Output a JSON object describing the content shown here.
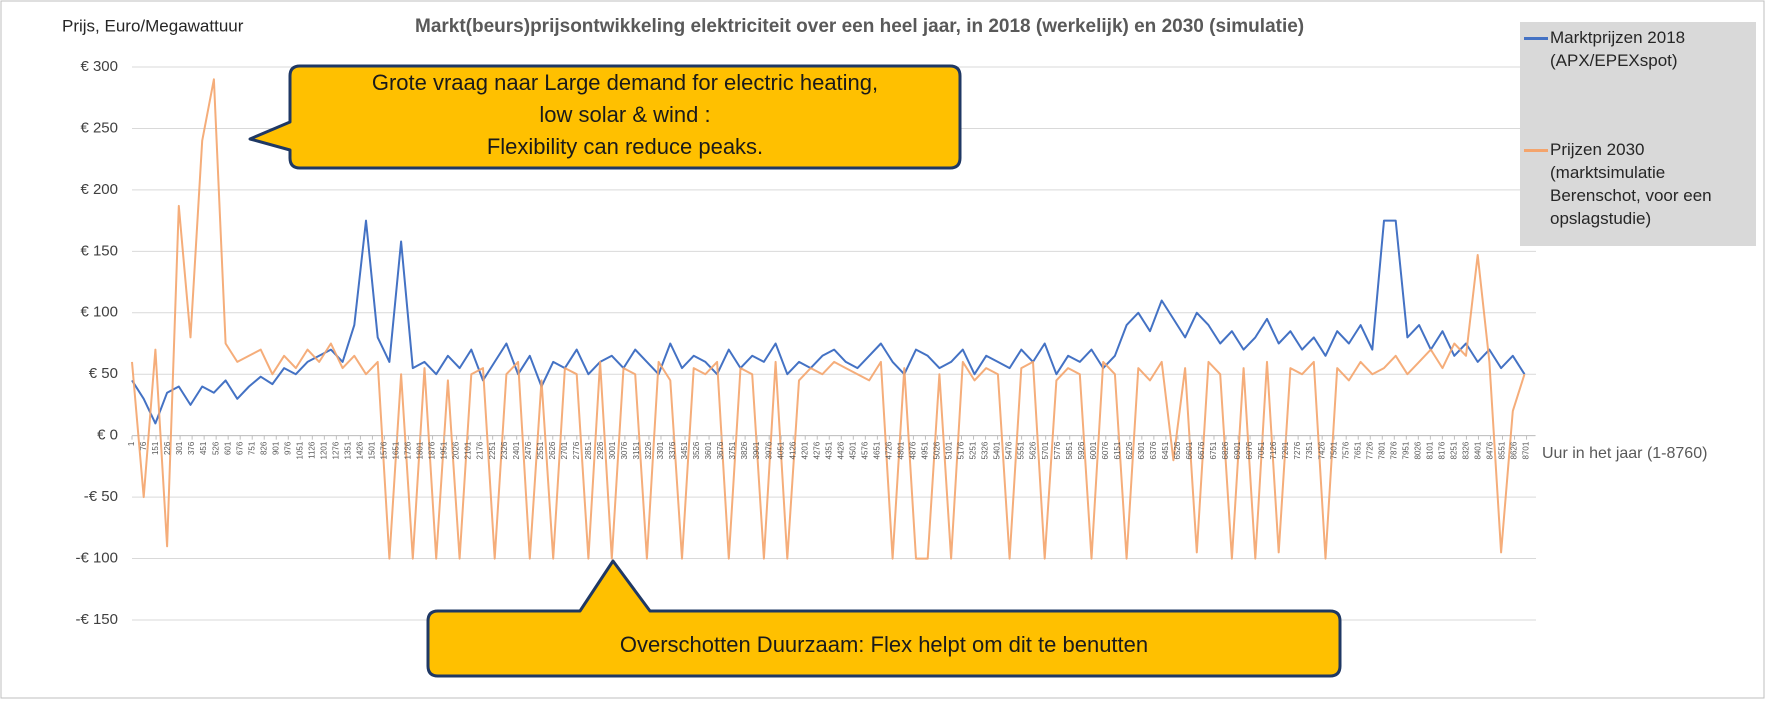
{
  "chart_data": {
    "type": "line",
    "title": "Markt(beurs)prijsontwikkeling elektriciteit over een heel jaar, in 2018 (werkelijk) en 2030 (simulatie)",
    "y_label": "Prijs, Euro/Megawattuur",
    "x_label": "Uur in het jaar (1-8760)",
    "xlim": [
      1,
      8760
    ],
    "ylim": [
      -150,
      300
    ],
    "yticks": [
      {
        "value": -150,
        "label": "-€ 150"
      },
      {
        "value": -100,
        "label": "-€ 100"
      },
      {
        "value": -50,
        "label": "-€ 50"
      },
      {
        "value": 0,
        "label": "€ 0"
      },
      {
        "value": 50,
        "label": "€ 50"
      },
      {
        "value": 100,
        "label": "€ 100"
      },
      {
        "value": 150,
        "label": "€ 150"
      },
      {
        "value": 200,
        "label": "€ 200"
      },
      {
        "value": 250,
        "label": "€ 250"
      },
      {
        "value": 300,
        "label": "€ 300"
      }
    ],
    "xticks": [
      1,
      76,
      151,
      226,
      301,
      376,
      451,
      526,
      601,
      676,
      751,
      826,
      901,
      976,
      1051,
      1126,
      1201,
      1276,
      1351,
      1426,
      1501,
      1576,
      1651,
      1726,
      1801,
      1876,
      1951,
      2026,
      2101,
      2176,
      2251,
      2326,
      2401,
      2476,
      2551,
      2626,
      2701,
      2776,
      2851,
      2926,
      3001,
      3076,
      3151,
      3226,
      3301,
      3376,
      3451,
      3526,
      3601,
      3676,
      3751,
      3826,
      3901,
      3976,
      4051,
      4126,
      4201,
      4276,
      4351,
      4426,
      4501,
      4576,
      4651,
      4726,
      4801,
      4876,
      4951,
      5026,
      5101,
      5176,
      5251,
      5326,
      5401,
      5476,
      5551,
      5626,
      5701,
      5776,
      5851,
      5926,
      6001,
      6076,
      6151,
      6226,
      6301,
      6376,
      6451,
      6526,
      6601,
      6676,
      6751,
      6826,
      6901,
      6976,
      7051,
      7126,
      7201,
      7276,
      7351,
      7426,
      7501,
      7576,
      7651,
      7726,
      7801,
      7876,
      7951,
      8026,
      8101,
      8176,
      8251,
      8326,
      8401,
      8476,
      8551,
      8626,
      8701
    ],
    "grid": true,
    "x": [
      1,
      74,
      147,
      220,
      293,
      366,
      439,
      512,
      585,
      658,
      731,
      804,
      877,
      950,
      1023,
      1096,
      1169,
      1242,
      1315,
      1388,
      1461,
      1534,
      1607,
      1680,
      1753,
      1826,
      1899,
      1972,
      2045,
      2118,
      2191,
      2264,
      2337,
      2410,
      2483,
      2556,
      2629,
      2702,
      2775,
      2848,
      2921,
      2994,
      3067,
      3140,
      3213,
      3286,
      3359,
      3432,
      3505,
      3578,
      3651,
      3724,
      3797,
      3870,
      3943,
      4016,
      4089,
      4162,
      4235,
      4308,
      4381,
      4454,
      4527,
      4600,
      4673,
      4746,
      4819,
      4892,
      4965,
      5038,
      5111,
      5184,
      5257,
      5330,
      5403,
      5476,
      5549,
      5622,
      5695,
      5768,
      5841,
      5914,
      5987,
      6060,
      6133,
      6206,
      6279,
      6352,
      6425,
      6498,
      6571,
      6644,
      6717,
      6790,
      6863,
      6936,
      7009,
      7082,
      7155,
      7228,
      7301,
      7374,
      7447,
      7520,
      7593,
      7666,
      7739,
      7812,
      7885,
      7958,
      8031,
      8104,
      8177,
      8250,
      8323,
      8396,
      8469,
      8542,
      8615,
      8688
    ],
    "series": [
      {
        "name": "Marktprijzen 2018 (APX/EPEXspot)",
        "color": "#4472c4",
        "values": [
          45,
          30,
          10,
          35,
          40,
          25,
          40,
          35,
          45,
          30,
          40,
          48,
          42,
          55,
          50,
          60,
          65,
          70,
          60,
          90,
          175,
          80,
          60,
          158,
          55,
          60,
          50,
          65,
          55,
          70,
          45,
          60,
          75,
          50,
          65,
          40,
          60,
          55,
          70,
          50,
          60,
          65,
          55,
          70,
          60,
          50,
          75,
          55,
          65,
          60,
          50,
          70,
          55,
          65,
          60,
          75,
          50,
          60,
          55,
          65,
          70,
          60,
          55,
          65,
          75,
          60,
          50,
          70,
          65,
          55,
          60,
          70,
          50,
          65,
          60,
          55,
          70,
          60,
          75,
          50,
          65,
          60,
          70,
          55,
          65,
          90,
          100,
          85,
          110,
          95,
          80,
          100,
          90,
          75,
          85,
          70,
          80,
          95,
          75,
          85,
          70,
          80,
          65,
          85,
          75,
          90,
          70,
          175,
          175,
          80,
          90,
          70,
          85,
          65,
          75,
          60,
          70,
          55,
          65,
          50
        ]
      },
      {
        "name": "Prijzen 2030 (marktsimulatie Berenschot, voor een opslagstudie)",
        "color": "#f4a46c",
        "values": [
          60,
          -50,
          70,
          -90,
          187,
          80,
          240,
          290,
          75,
          60,
          65,
          70,
          50,
          65,
          55,
          70,
          60,
          75,
          55,
          65,
          50,
          60,
          -100,
          50,
          -100,
          55,
          -100,
          45,
          -100,
          50,
          55,
          -100,
          50,
          60,
          -100,
          45,
          -100,
          55,
          50,
          -100,
          60,
          -100,
          55,
          50,
          -100,
          60,
          45,
          -100,
          55,
          50,
          60,
          -100,
          55,
          50,
          -100,
          60,
          -100,
          45,
          55,
          50,
          60,
          55,
          50,
          45,
          60,
          -100,
          55,
          -100,
          -100,
          50,
          -100,
          60,
          45,
          55,
          50,
          -100,
          55,
          60,
          -100,
          45,
          55,
          50,
          -100,
          60,
          50,
          -100,
          55,
          45,
          60,
          -20,
          55,
          -95,
          60,
          50,
          -100,
          55,
          -100,
          60,
          -95,
          55,
          50,
          60,
          -100,
          55,
          45,
          60,
          50,
          55,
          65,
          50,
          60,
          70,
          55,
          75,
          65,
          147,
          60,
          -95,
          20,
          50
        ]
      }
    ],
    "annotations": [
      {
        "lines": [
          "Grote vraag naar Large demand for electric heating,",
          "low solar & wind :",
          "Flexibility can reduce peaks."
        ]
      },
      {
        "text": "Overschotten Duurzaam: Flex helpt om dit te benutten"
      }
    ]
  }
}
